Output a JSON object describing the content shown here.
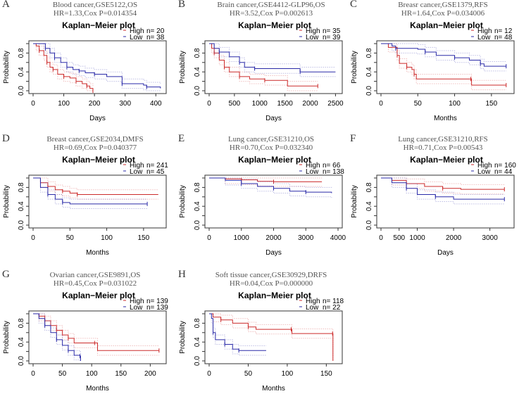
{
  "colors": {
    "high": "#cc2a2a",
    "low": "#2a2aa8",
    "ci": "#c8c8c8"
  },
  "km_title": "Kaplan−Meier plot",
  "ylabel": "Probability",
  "chart_data": [
    {
      "type": "line",
      "panel": "A",
      "title": "Blood cancer,GSE5122,OS",
      "subtitle": "HR=1.33,Cox P=0.014354",
      "xlabel": "Days",
      "xlim": [
        0,
        420
      ],
      "xticks": [
        0,
        100,
        200,
        300,
        400
      ],
      "ylim": [
        0,
        1
      ],
      "yticks": [
        "0.0",
        "0.4",
        "0.8"
      ],
      "legend": [
        {
          "name": "High",
          "n": "n= 20"
        },
        {
          "name": "Low",
          "n": "n= 38"
        }
      ],
      "series": [
        {
          "name": "High",
          "points": [
            [
              0,
              1
            ],
            [
              10,
              0.95
            ],
            [
              20,
              0.85
            ],
            [
              35,
              0.75
            ],
            [
              45,
              0.6
            ],
            [
              55,
              0.5
            ],
            [
              65,
              0.45
            ],
            [
              80,
              0.35
            ],
            [
              100,
              0.3
            ],
            [
              120,
              0.27
            ],
            [
              140,
              0.2
            ],
            [
              160,
              0.15
            ],
            [
              175,
              0.1
            ],
            [
              185,
              0.05
            ],
            [
              195,
              0
            ]
          ]
        },
        {
          "name": "Low",
          "points": [
            [
              0,
              1
            ],
            [
              35,
              1
            ],
            [
              40,
              0.9
            ],
            [
              55,
              0.8
            ],
            [
              70,
              0.7
            ],
            [
              90,
              0.6
            ],
            [
              110,
              0.5
            ],
            [
              130,
              0.45
            ],
            [
              150,
              0.42
            ],
            [
              170,
              0.38
            ],
            [
              200,
              0.35
            ],
            [
              240,
              0.3
            ],
            [
              290,
              0.15
            ],
            [
              360,
              0.12
            ],
            [
              370,
              0.08
            ],
            [
              415,
              0.05
            ]
          ]
        }
      ]
    },
    {
      "type": "line",
      "panel": "B",
      "title": "Brain cancer,GSE4412-GLP96,OS",
      "subtitle": "HR=3.52,Cox P=0.002613",
      "xlabel": "Days",
      "xlim": [
        0,
        2550
      ],
      "xticks": [
        0,
        500,
        1000,
        1500,
        2000,
        2500
      ],
      "ylim": [
        0,
        1
      ],
      "yticks": [
        "0.0",
        "0.4",
        "0.8"
      ],
      "legend": [
        {
          "name": "High",
          "n": "n= 35"
        },
        {
          "name": "Low",
          "n": "n= 39"
        }
      ],
      "series": [
        {
          "name": "High",
          "points": [
            [
              0,
              1
            ],
            [
              50,
              0.9
            ],
            [
              100,
              0.8
            ],
            [
              200,
              0.65
            ],
            [
              300,
              0.5
            ],
            [
              400,
              0.4
            ],
            [
              600,
              0.3
            ],
            [
              800,
              0.25
            ],
            [
              1100,
              0.22
            ],
            [
              1550,
              0.1
            ],
            [
              2150,
              0.1
            ]
          ]
        },
        {
          "name": "Low",
          "points": [
            [
              0,
              1
            ],
            [
              100,
              0.9
            ],
            [
              200,
              0.82
            ],
            [
              400,
              0.72
            ],
            [
              600,
              0.6
            ],
            [
              700,
              0.5
            ],
            [
              900,
              0.47
            ],
            [
              1750,
              0.47
            ],
            [
              1800,
              0.4
            ],
            [
              2500,
              0.4
            ]
          ]
        }
      ]
    },
    {
      "type": "line",
      "panel": "C",
      "title": "Breasr cancer,GSE1379,RFS",
      "subtitle": "HR=1.64,Cox P=0.034006",
      "xlabel": "Months",
      "xlim": [
        0,
        175
      ],
      "xticks": [
        0,
        50,
        100,
        150
      ],
      "ylim": [
        0,
        1
      ],
      "yticks": [
        "0.0",
        "0.4",
        "0.8"
      ],
      "legend": [
        {
          "name": "High",
          "n": "n= 12"
        },
        {
          "name": "Low",
          "n": "n= 48"
        }
      ],
      "series": [
        {
          "name": "High",
          "points": [
            [
              0,
              1
            ],
            [
              10,
              0.92
            ],
            [
              22,
              0.75
            ],
            [
              25,
              0.58
            ],
            [
              35,
              0.5
            ],
            [
              42,
              0.45
            ],
            [
              45,
              0.35
            ],
            [
              48,
              0.25
            ],
            [
              122,
              0.25
            ],
            [
              123,
              0.12
            ],
            [
              170,
              0.12
            ]
          ]
        },
        {
          "name": "Low",
          "points": [
            [
              0,
              1
            ],
            [
              15,
              0.95
            ],
            [
              20,
              0.9
            ],
            [
              50,
              0.88
            ],
            [
              60,
              0.82
            ],
            [
              75,
              0.75
            ],
            [
              100,
              0.7
            ],
            [
              120,
              0.65
            ],
            [
              135,
              0.57
            ],
            [
              140,
              0.52
            ],
            [
              170,
              0.52
            ]
          ]
        }
      ]
    },
    {
      "type": "line",
      "panel": "D",
      "title": "Breast cancer,GSE2034,DMFS",
      "subtitle": "HR=0.69,Cox P=0.040377",
      "xlabel": "Months",
      "xlim": [
        0,
        175
      ],
      "xticks": [
        0,
        50,
        100,
        150
      ],
      "ylim": [
        0,
        1
      ],
      "yticks": [
        "0.0",
        "0.4",
        "0.8"
      ],
      "legend": [
        {
          "name": "High",
          "n": "n= 241"
        },
        {
          "name": "Low",
          "n": "n= 45"
        }
      ],
      "series": [
        {
          "name": "High",
          "points": [
            [
              0,
              1
            ],
            [
              10,
              0.9
            ],
            [
              20,
              0.82
            ],
            [
              30,
              0.75
            ],
            [
              40,
              0.72
            ],
            [
              50,
              0.68
            ],
            [
              60,
              0.65
            ],
            [
              170,
              0.65
            ]
          ]
        },
        {
          "name": "Low",
          "points": [
            [
              0,
              1
            ],
            [
              10,
              0.8
            ],
            [
              20,
              0.65
            ],
            [
              30,
              0.55
            ],
            [
              40,
              0.48
            ],
            [
              50,
              0.45
            ],
            [
              155,
              0.45
            ]
          ]
        }
      ]
    },
    {
      "type": "line",
      "panel": "E",
      "title": "Lung cancer,GSE31210,OS",
      "subtitle": "HR=0.70,Cox P=0.032340",
      "xlabel": "Days",
      "xlim": [
        0,
        4000
      ],
      "xticks": [
        0,
        1000,
        2000,
        3000,
        4000
      ],
      "ylim": [
        0,
        1
      ],
      "yticks": [
        "0.0",
        "0.4",
        "0.8"
      ],
      "legend": [
        {
          "name": "High",
          "n": "n= 66"
        },
        {
          "name": "Low",
          "n": "n= 138"
        }
      ],
      "series": [
        {
          "name": "High",
          "points": [
            [
              0,
              1
            ],
            [
              500,
              0.98
            ],
            [
              1000,
              0.96
            ],
            [
              1500,
              0.93
            ],
            [
              2000,
              0.92
            ],
            [
              3500,
              0.92
            ]
          ]
        },
        {
          "name": "Low",
          "points": [
            [
              0,
              1
            ],
            [
              500,
              0.95
            ],
            [
              1000,
              0.88
            ],
            [
              1500,
              0.82
            ],
            [
              2000,
              0.78
            ],
            [
              2500,
              0.72
            ],
            [
              3000,
              0.7
            ],
            [
              3800,
              0.68
            ]
          ]
        }
      ]
    },
    {
      "type": "line",
      "panel": "F",
      "title": "Lung cancer,GSE31210,RFS",
      "subtitle": "HR=0.71,Cox P=0.00543",
      "xlabel": "Days",
      "xlim": [
        0,
        3550
      ],
      "xticks": [
        0,
        500,
        1000,
        2000,
        3000
      ],
      "ylim": [
        0,
        1
      ],
      "yticks": [
        "0.0",
        "0.4",
        "0.8"
      ],
      "legend": [
        {
          "name": "High",
          "n": "n= 160"
        },
        {
          "name": "Low",
          "n": "n= 44"
        }
      ],
      "series": [
        {
          "name": "High",
          "points": [
            [
              0,
              1
            ],
            [
              300,
              0.95
            ],
            [
              700,
              0.88
            ],
            [
              1200,
              0.82
            ],
            [
              1700,
              0.78
            ],
            [
              2200,
              0.76
            ],
            [
              3400,
              0.76
            ]
          ]
        },
        {
          "name": "Low",
          "points": [
            [
              0,
              1
            ],
            [
              300,
              0.9
            ],
            [
              700,
              0.78
            ],
            [
              1000,
              0.65
            ],
            [
              1500,
              0.6
            ],
            [
              2000,
              0.55
            ],
            [
              3400,
              0.55
            ]
          ]
        }
      ]
    },
    {
      "type": "line",
      "panel": "G",
      "title": "Ovarian cancer,GSE9891,OS",
      "subtitle": "HR=0.45,Cox P=0.031022",
      "xlabel": "Months",
      "xlim": [
        0,
        220
      ],
      "xticks": [
        0,
        50,
        100,
        150,
        200
      ],
      "ylim": [
        0,
        1
      ],
      "yticks": [
        "0.0",
        "0.4",
        "0.8"
      ],
      "legend": [
        {
          "name": "High",
          "n": "n= 139"
        },
        {
          "name": "Low",
          "n": "n= 139"
        }
      ],
      "series": [
        {
          "name": "High",
          "points": [
            [
              0,
              1
            ],
            [
              10,
              0.95
            ],
            [
              20,
              0.85
            ],
            [
              30,
              0.75
            ],
            [
              40,
              0.65
            ],
            [
              50,
              0.55
            ],
            [
              60,
              0.48
            ],
            [
              70,
              0.38
            ],
            [
              105,
              0.38
            ],
            [
              110,
              0.22
            ],
            [
              215,
              0.22
            ]
          ]
        },
        {
          "name": "Low",
          "points": [
            [
              0,
              1
            ],
            [
              10,
              0.9
            ],
            [
              20,
              0.75
            ],
            [
              30,
              0.6
            ],
            [
              40,
              0.45
            ],
            [
              50,
              0.33
            ],
            [
              60,
              0.22
            ],
            [
              70,
              0.12
            ],
            [
              80,
              0.1
            ],
            [
              81,
              0
            ]
          ]
        }
      ]
    },
    {
      "type": "line",
      "panel": "H",
      "title": "Soft tissue cancer,GSE30929,DRFS",
      "subtitle": "HR=0.04,Cox P=0.000000",
      "xlabel": "Months",
      "xlim": [
        0,
        165
      ],
      "xticks": [
        0,
        50,
        100,
        150
      ],
      "ylim": [
        0,
        1
      ],
      "yticks": [
        "0.0",
        "0.4",
        "0.8"
      ],
      "legend": [
        {
          "name": "High",
          "n": "n= 118"
        },
        {
          "name": "Low",
          "n": "n= 22"
        }
      ],
      "series": [
        {
          "name": "High",
          "points": [
            [
              0,
              1
            ],
            [
              5,
              0.93
            ],
            [
              15,
              0.87
            ],
            [
              30,
              0.8
            ],
            [
              50,
              0.72
            ],
            [
              60,
              0.67
            ],
            [
              105,
              0.67
            ],
            [
              106,
              0.58
            ],
            [
              158,
              0.58
            ],
            [
              158.5,
              0
            ]
          ]
        },
        {
          "name": "Low",
          "points": [
            [
              0,
              1
            ],
            [
              3,
              0.9
            ],
            [
              5,
              0.6
            ],
            [
              8,
              0.45
            ],
            [
              20,
              0.35
            ],
            [
              30,
              0.25
            ],
            [
              38,
              0.22
            ],
            [
              73,
              0.22
            ]
          ]
        }
      ]
    }
  ]
}
